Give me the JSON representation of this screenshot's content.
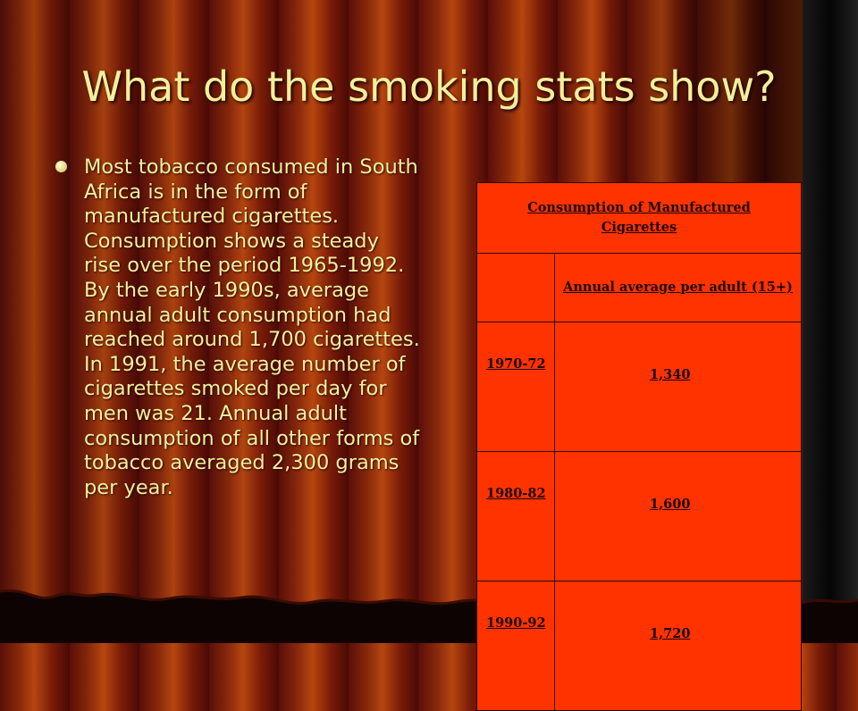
{
  "slide": {
    "title": "What do the smoking stats show?",
    "bullet": "Most tobacco consumed in South Africa is in the form of manufactured cigarettes. Consumption shows a steady rise over the period 1965-1992. By the early 1990s, average annual adult consumption had reached around 1,700 cigarettes. In 1991, the average number of cigarettes smoked per day for men was 21. Annual adult consumption of all other forms of tobacco averaged 2,300 grams per year."
  },
  "table": {
    "header": "Consumption of Manufactured Cigarettes",
    "subheader": "Annual average per adult (15+)",
    "rows": [
      {
        "period": "1970-72",
        "value": "1,340"
      },
      {
        "period": "1980-82",
        "value": "1,600"
      },
      {
        "period": "1990-92",
        "value": "1,720"
      }
    ]
  },
  "colors": {
    "title_text": "#f3ef9c",
    "table_fill": "#ff3300",
    "curtain": "#8a2a0c"
  }
}
